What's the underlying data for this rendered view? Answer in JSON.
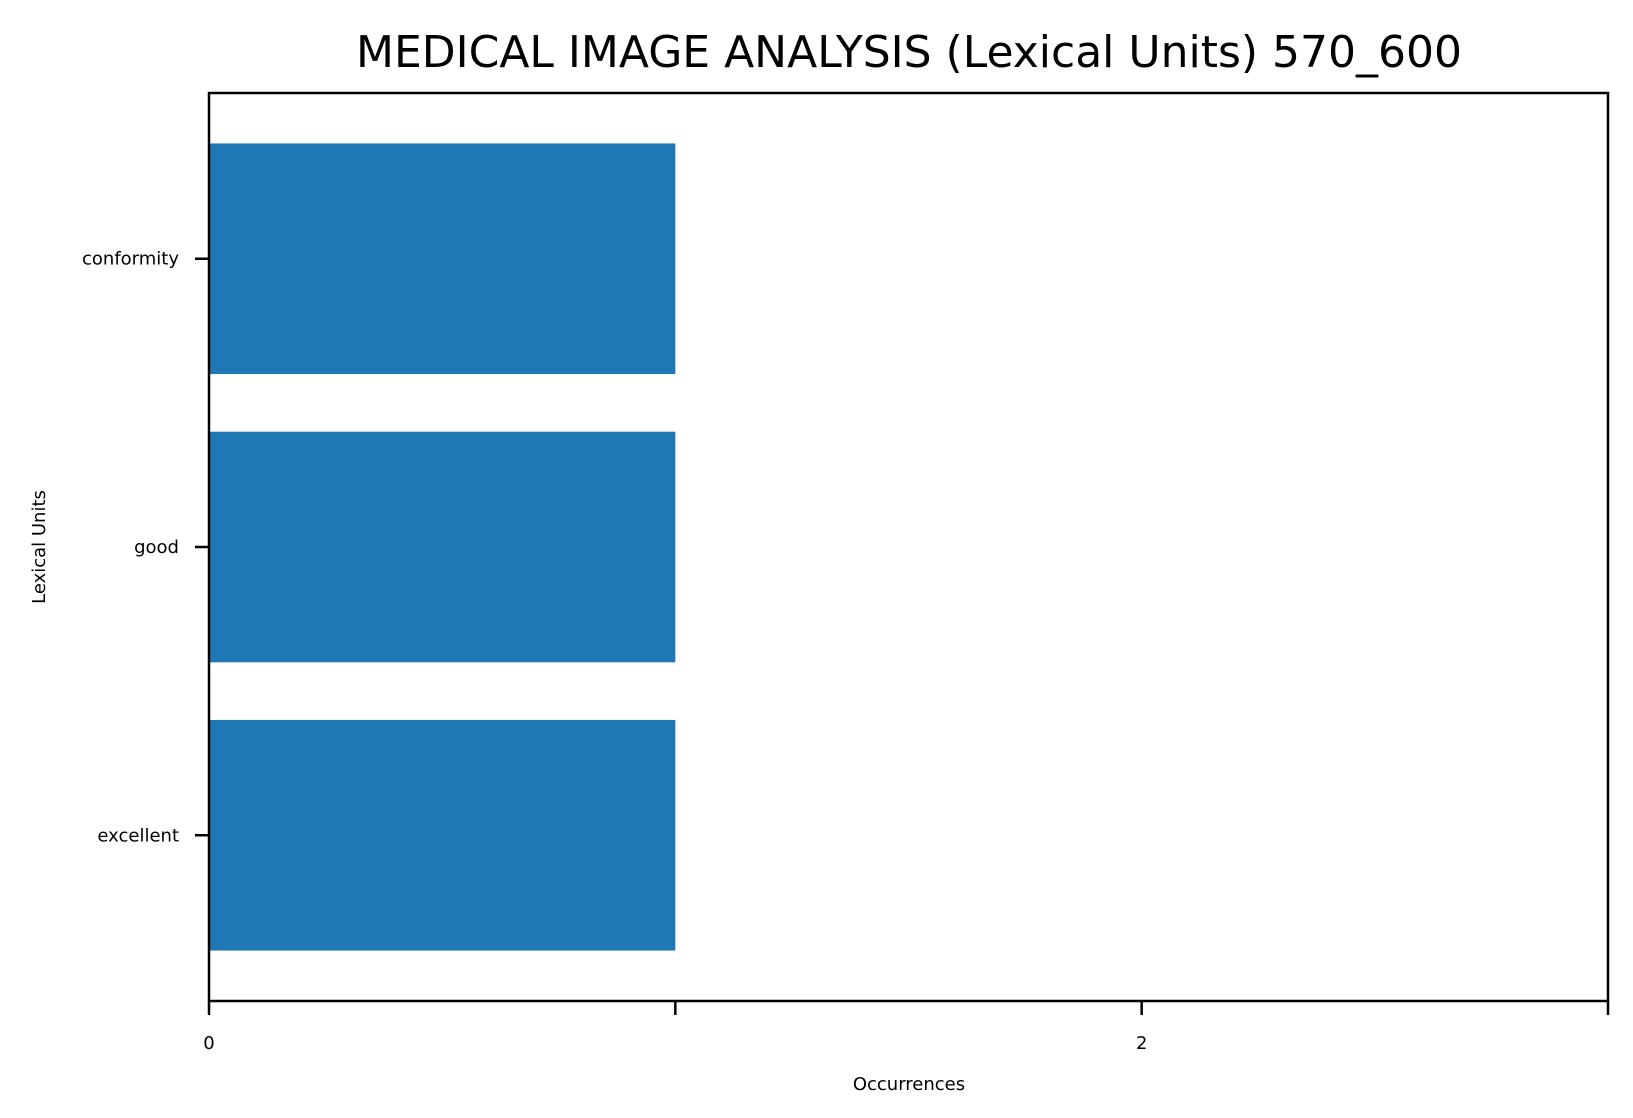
{
  "chart_data": {
    "type": "bar",
    "orientation": "horizontal",
    "title": "MEDICAL IMAGE ANALYSIS (Lexical Units) 570_600",
    "xlabel": "Occurrences",
    "ylabel": "Lexical Units",
    "categories": [
      "conformity",
      "good",
      "excellent"
    ],
    "values": [
      1,
      1,
      1
    ],
    "xlim": [
      0,
      3
    ],
    "x_ticks": [
      0,
      1,
      2,
      3
    ],
    "x_tick_labels": [
      "0",
      "",
      "2",
      ""
    ],
    "grid": false,
    "bar_color": "#1f77b4"
  }
}
